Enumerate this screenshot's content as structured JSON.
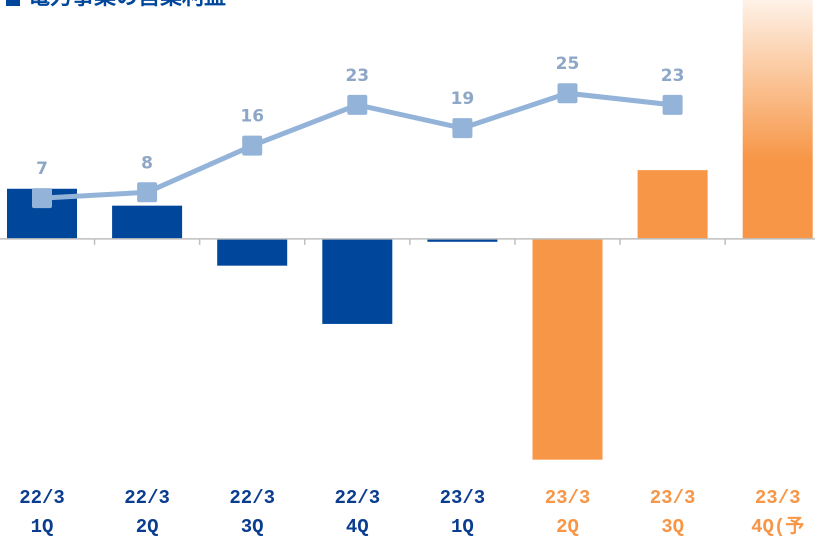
{
  "chart_data": {
    "type": "bar-line",
    "title": "電力事業の営業利益",
    "categories": [
      [
        "22/3",
        "1Q"
      ],
      [
        "22/3",
        "2Q"
      ],
      [
        "22/3",
        "3Q"
      ],
      [
        "22/3",
        "4Q"
      ],
      [
        "23/3",
        "1Q"
      ],
      [
        "23/3",
        "2Q"
      ],
      [
        "23/3",
        "3Q"
      ],
      [
        "23/3",
        "4Q(予"
      ]
    ],
    "category_colors": [
      "#0a3d8f",
      "#0a3d8f",
      "#0a3d8f",
      "#0a3d8f",
      "#0a3d8f",
      "#f79646",
      "#f79646",
      "#f79646"
    ],
    "bars": {
      "values": [
        8.6,
        5.7,
        -4.6,
        -14.6,
        -0.5,
        -37.9,
        11.8,
        45
      ],
      "colors": [
        "#00469b",
        "#00469b",
        "#00469b",
        "#00469b",
        "#00469b",
        "#f79646",
        "#f79646",
        "#f79646"
      ],
      "forecast": [
        false,
        false,
        false,
        false,
        false,
        false,
        false,
        true
      ]
    },
    "line": {
      "values": [
        7,
        8,
        16,
        23,
        19,
        25,
        23,
        null
      ],
      "color": "#94b3d9",
      "label_color": "#8ea7c6"
    },
    "ylim": [
      -51,
      41
    ]
  }
}
